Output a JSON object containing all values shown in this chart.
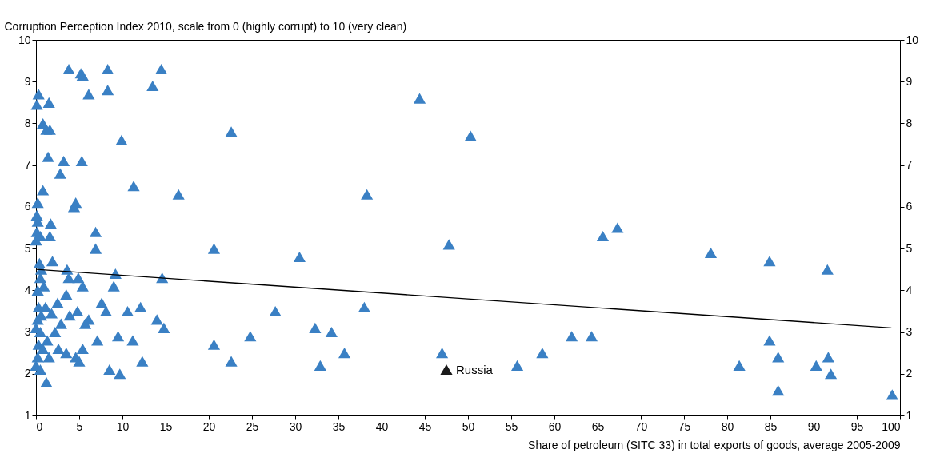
{
  "chart_data": {
    "type": "scatter",
    "ylabel": "Corruption Perception Index 2010, scale from 0 (highly corrupt) to 10 (very clean)",
    "xlabel": "Share of petroleum (SITC 33) in total exports of goods, average 2005-2009",
    "xlim": [
      0,
      100
    ],
    "xticks": [
      0,
      5,
      10,
      15,
      20,
      25,
      30,
      35,
      40,
      45,
      50,
      55,
      60,
      65,
      70,
      75,
      80,
      85,
      90,
      95,
      100
    ],
    "ylim": [
      1,
      10
    ],
    "yticks": [
      1,
      2,
      3,
      4,
      5,
      6,
      7,
      8,
      9,
      10
    ],
    "y2lim": [
      1,
      10
    ],
    "y2ticks": [
      1,
      2,
      3,
      4,
      5,
      6,
      7,
      8,
      9,
      10
    ],
    "grid": false,
    "legend": false,
    "marker": "triangle",
    "series": [
      {
        "color": "#3a80c4",
        "x": [
          3.8,
          5.2,
          5.4,
          8.3,
          14.5,
          13.5,
          8.3,
          6.1,
          0.3,
          0.1,
          1.5,
          0.8,
          1.2,
          1.6,
          1.4,
          9.9,
          22.6,
          3.2,
          5.3,
          2.8,
          0.8,
          11.3,
          16.5,
          0.2,
          4.6,
          4.4,
          0.1,
          0.2,
          1.7,
          6.9,
          0.1,
          0.5,
          1.6,
          0.0,
          6.9,
          20.6,
          1.9,
          0.4,
          0.6,
          3.6,
          9.2,
          14.6,
          3.8,
          4.9,
          0.5,
          0.9,
          5.4,
          9.0,
          0.2,
          3.5,
          7.6,
          2.5,
          1.1,
          12.1,
          0.3,
          8.1,
          10.6,
          4.8,
          1.8,
          3.9,
          0.6,
          2.9,
          5.7,
          6.1,
          14.0,
          14.8,
          0.2,
          0.0,
          0.5,
          2.2,
          9.5,
          11.2,
          7.1,
          1.3,
          0.3,
          0.8,
          2.6,
          3.5,
          5.4,
          4.6,
          5.0,
          1.5,
          0.2,
          12.3,
          0.0,
          0.5,
          8.5,
          9.7,
          1.2,
          44.4,
          50.3,
          38.3,
          47.8,
          30.5,
          38.0,
          27.7,
          32.3,
          34.2,
          24.8,
          20.6,
          22.6,
          35.7,
          32.9,
          47.0,
          55.7,
          58.6,
          62.0,
          64.3,
          65.6,
          67.3,
          78.1,
          84.9,
          91.6,
          84.9,
          81.4,
          85.9,
          85.9,
          90.3,
          91.7,
          92.0,
          99.1
        ],
        "values": [
          9.3,
          9.2,
          9.15,
          9.3,
          9.3,
          8.9,
          8.8,
          8.7,
          8.7,
          8.45,
          8.5,
          8.0,
          7.85,
          7.85,
          7.2,
          7.6,
          7.8,
          7.1,
          7.1,
          6.8,
          6.4,
          6.5,
          6.3,
          6.1,
          6.1,
          6.0,
          5.8,
          5.65,
          5.6,
          5.4,
          5.4,
          5.3,
          5.3,
          5.2,
          5.0,
          5.0,
          4.7,
          4.65,
          4.5,
          4.5,
          4.4,
          4.3,
          4.3,
          4.3,
          4.3,
          4.1,
          4.1,
          4.1,
          4.0,
          3.9,
          3.7,
          3.7,
          3.6,
          3.6,
          3.6,
          3.5,
          3.5,
          3.5,
          3.45,
          3.4,
          3.4,
          3.2,
          3.2,
          3.3,
          3.3,
          3.1,
          3.3,
          3.1,
          3.0,
          3.0,
          2.9,
          2.8,
          2.8,
          2.8,
          2.7,
          2.6,
          2.6,
          2.5,
          2.6,
          2.4,
          2.3,
          2.4,
          2.4,
          2.3,
          2.2,
          2.1,
          2.1,
          2.0,
          1.8,
          8.6,
          7.7,
          6.3,
          5.1,
          4.8,
          3.6,
          3.5,
          3.1,
          3.0,
          2.9,
          2.7,
          2.3,
          2.5,
          2.2,
          2.5,
          2.2,
          2.5,
          2.9,
          2.9,
          5.3,
          5.5,
          4.9,
          4.7,
          4.5,
          2.8,
          2.2,
          2.4,
          1.6,
          2.2,
          2.4,
          2.0,
          1.5
        ]
      },
      {
        "name": "Russia",
        "color": "#1a1a1a",
        "x": [
          47.5
        ],
        "values": [
          2.1
        ]
      },
      {
        "type": "line",
        "color": "#000000",
        "x": [
          0,
          99
        ],
        "values": [
          4.5,
          3.1
        ],
        "marker": "none",
        "line_style": "solid"
      }
    ]
  }
}
